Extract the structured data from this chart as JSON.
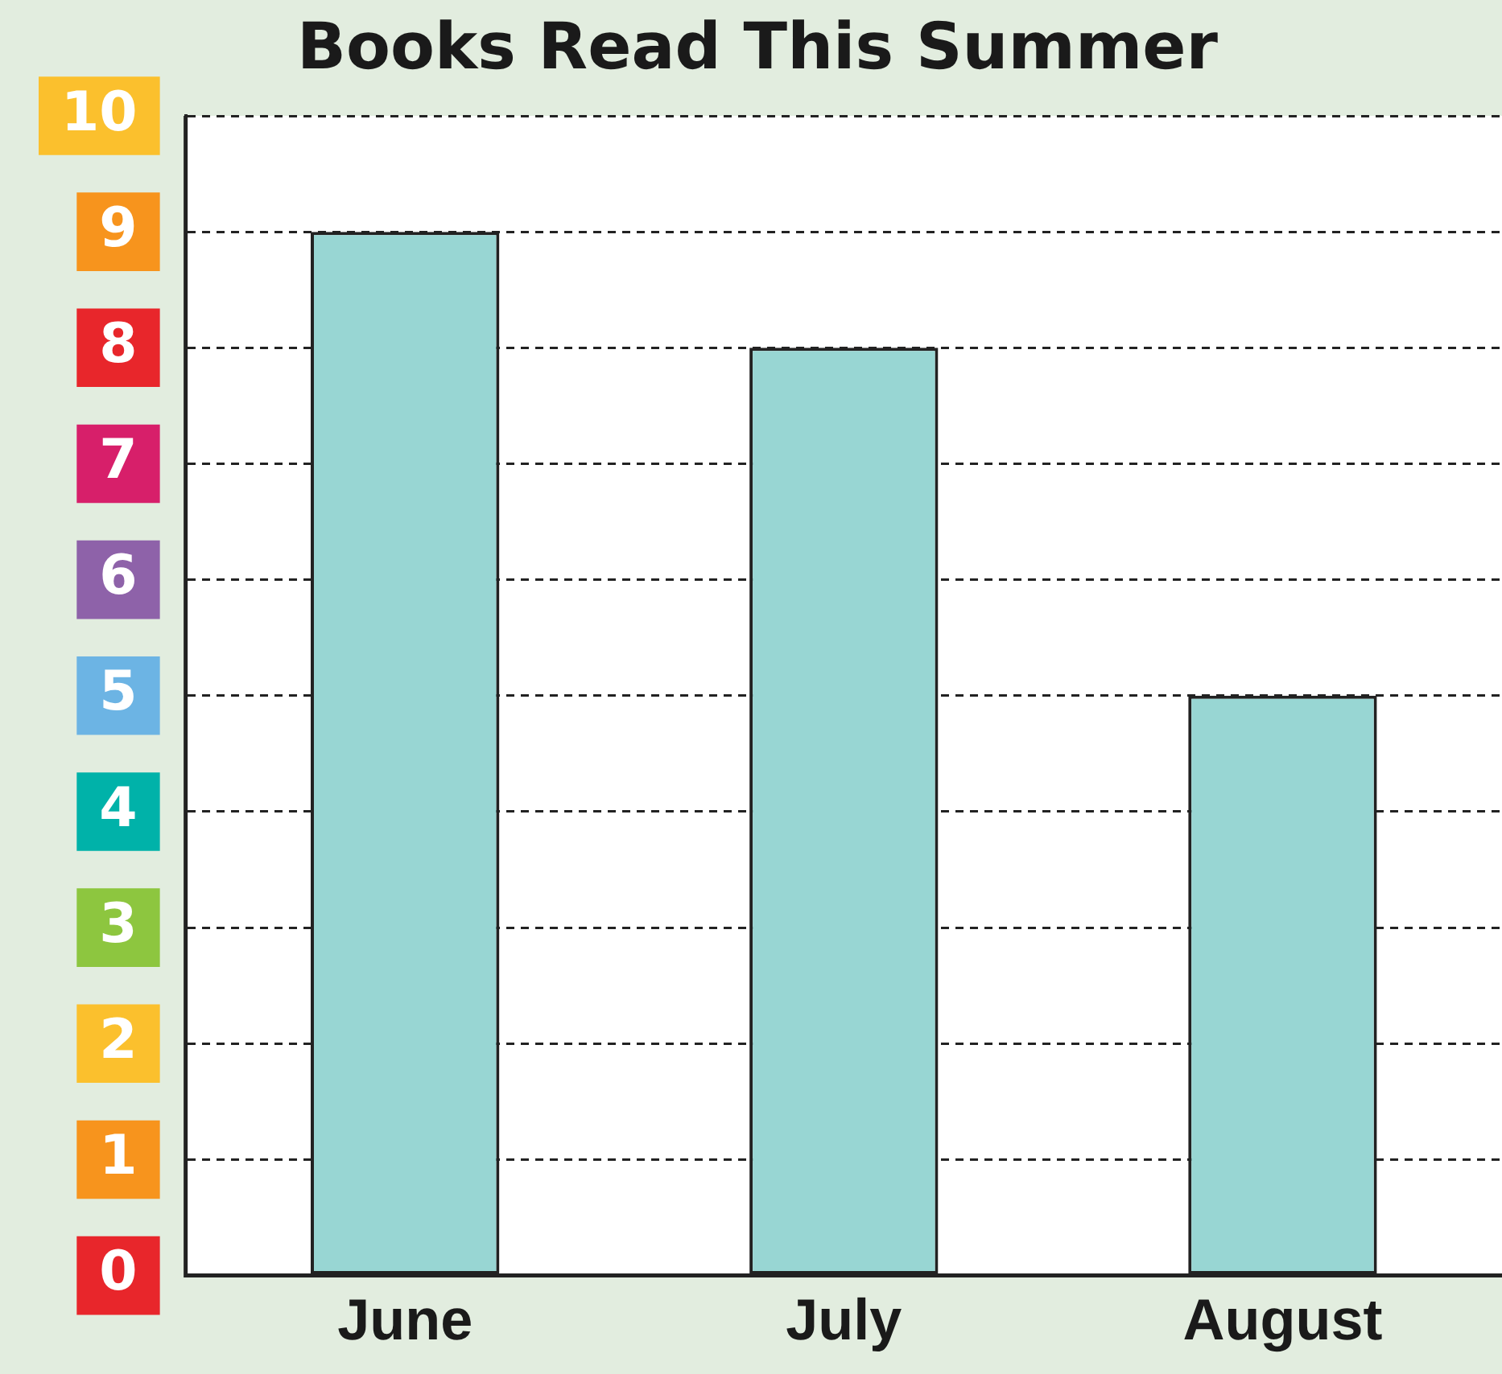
{
  "chart_data": {
    "type": "bar",
    "title": "Books Read This Summer",
    "categories": [
      "June",
      "July",
      "August"
    ],
    "values": [
      9,
      8,
      5
    ],
    "color": "#98d6d3",
    "ylim": [
      0,
      10
    ],
    "yticks": [
      0,
      1,
      2,
      3,
      4,
      5,
      6,
      7,
      8,
      9,
      10
    ],
    "grid": "y"
  }
}
